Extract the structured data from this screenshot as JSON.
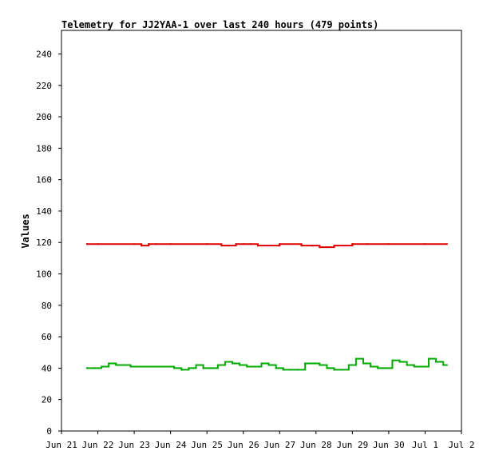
{
  "chart_data": {
    "type": "line",
    "title": "Telemetry for JJ2YAA-1 over last 240 hours (479 points)",
    "xlabel": "",
    "ylabel": "Values",
    "ylim": [
      0,
      255
    ],
    "yticks": [
      0,
      20,
      40,
      60,
      80,
      100,
      120,
      140,
      160,
      180,
      200,
      220,
      240
    ],
    "x_axis": {
      "unit": "days since Jun 21",
      "range": [
        0,
        11
      ],
      "ticks": [
        {
          "x": 0,
          "label": "Jun 21"
        },
        {
          "x": 1,
          "label": "Jun 22"
        },
        {
          "x": 2,
          "label": "Jun 23"
        },
        {
          "x": 3,
          "label": "Jun 24"
        },
        {
          "x": 4,
          "label": "Jun 25"
        },
        {
          "x": 5,
          "label": "Jun 26"
        },
        {
          "x": 6,
          "label": "Jun 27"
        },
        {
          "x": 7,
          "label": "Jun 28"
        },
        {
          "x": 8,
          "label": "Jun 29"
        },
        {
          "x": 9,
          "label": "Jun 30"
        },
        {
          "x": 10,
          "label": "Jul 1"
        },
        {
          "x": 11,
          "label": "Jul 2"
        }
      ]
    },
    "grid": false,
    "legend": "none",
    "series": [
      {
        "color": "#dd0000",
        "x": [
          0.7,
          1.0,
          2.0,
          2.2,
          2.4,
          2.6,
          3.0,
          4.0,
          4.4,
          4.6,
          4.8,
          5.0,
          5.2,
          5.4,
          6.0,
          6.6,
          6.9,
          7.1,
          7.3,
          7.5,
          8.0,
          8.4,
          9.0,
          10.0,
          10.6
        ],
        "y": [
          119,
          119,
          119,
          118,
          119,
          119,
          119,
          119,
          118,
          118,
          119,
          119,
          119,
          118,
          119,
          118,
          118,
          117,
          117,
          118,
          119,
          119,
          119,
          119,
          119
        ]
      },
      {
        "color": "#00aa00",
        "x": [
          0.7,
          0.9,
          1.1,
          1.3,
          1.5,
          1.7,
          1.9,
          2.1,
          2.3,
          2.5,
          2.7,
          2.9,
          3.1,
          3.3,
          3.5,
          3.7,
          3.9,
          4.1,
          4.3,
          4.5,
          4.7,
          4.9,
          5.1,
          5.3,
          5.5,
          5.7,
          5.9,
          6.1,
          6.3,
          6.5,
          6.7,
          6.9,
          7.1,
          7.3,
          7.5,
          7.7,
          7.9,
          8.1,
          8.3,
          8.5,
          8.7,
          8.9,
          9.1,
          9.3,
          9.5,
          9.7,
          9.9,
          10.1,
          10.3,
          10.5,
          10.6
        ],
        "y": [
          40,
          40,
          41,
          43,
          42,
          42,
          41,
          41,
          41,
          41,
          41,
          41,
          40,
          39,
          40,
          42,
          40,
          40,
          42,
          44,
          43,
          42,
          41,
          41,
          43,
          42,
          40,
          39,
          39,
          39,
          43,
          43,
          42,
          40,
          39,
          39,
          42,
          46,
          43,
          41,
          40,
          40,
          45,
          44,
          42,
          41,
          41,
          46,
          44,
          42,
          42
        ]
      }
    ]
  }
}
